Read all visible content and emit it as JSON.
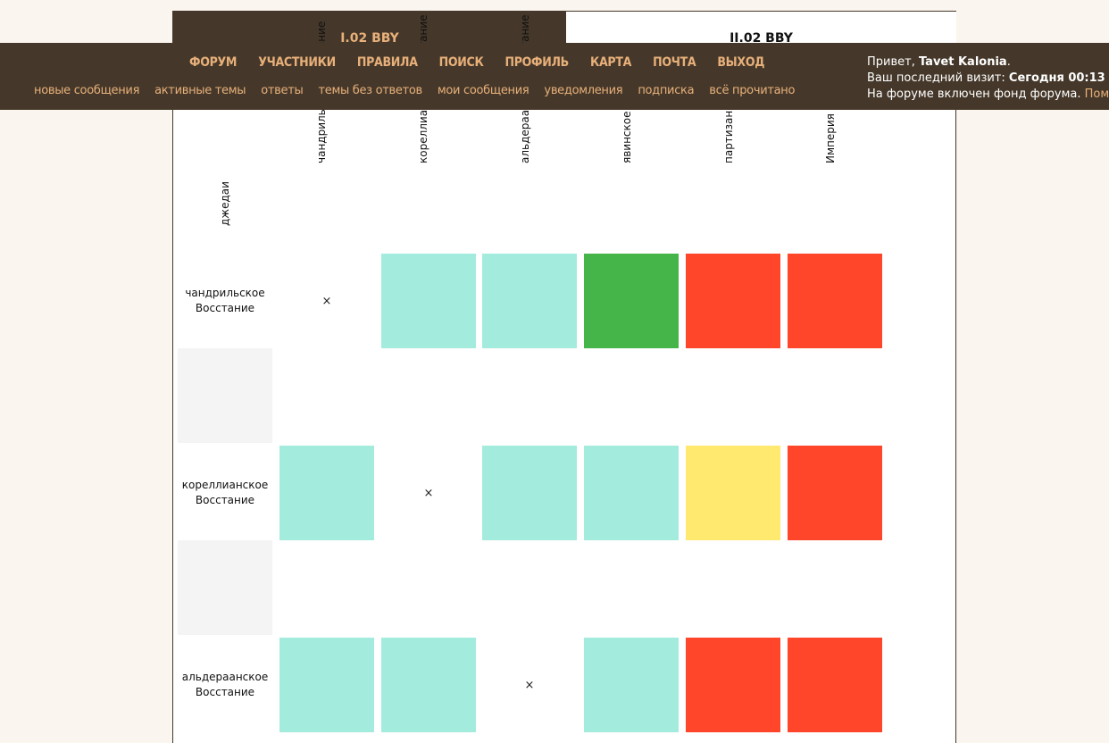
{
  "tabs": [
    {
      "label": "I.02 BBY",
      "active": true
    },
    {
      "label": "II.02 BBY",
      "active": false
    }
  ],
  "nav": {
    "main": [
      "ФОРУМ",
      "УЧАСТНИКИ",
      "ПРАВИЛА",
      "ПОИСК",
      "ПРОФИЛЬ",
      "КАРТА",
      "ПОЧТА",
      "ВЫХОД"
    ],
    "sub": [
      "новые сообщения",
      "активные темы",
      "ответы",
      "темы без ответов",
      "мои сообщения",
      "уведомления",
      "подписка",
      "всё прочитано"
    ]
  },
  "welcome": {
    "greeting": "Привет, ",
    "user": "Tavet Kalonia",
    "dot": ".",
    "last_visit_label": "Ваш последний визит: ",
    "last_visit": "Сегодня 00:13",
    "fund_text": "На форуме включен фонд форума. ",
    "fund_link": "Пом"
  },
  "matrix": {
    "corner_label": "джедаи",
    "columns": [
      "чандрильское Восстание",
      "кореллианское Восстание",
      "альдераанское Восстание",
      "явинское Восстание",
      "партизаны",
      "Империя"
    ],
    "rows": [
      {
        "label": "чандрильское Восстание",
        "cells": [
          "x",
          "ally",
          "ally",
          "friend",
          "enemy",
          "enemy"
        ]
      },
      {
        "label": "кореллианское Восстание",
        "cells": [
          "ally",
          "x",
          "ally",
          "ally",
          "neutral",
          "enemy"
        ]
      },
      {
        "label": "альдераанское Восстание",
        "cells": [
          "ally",
          "ally",
          "x",
          "ally",
          "enemy",
          "enemy"
        ]
      }
    ],
    "self_mark": "×",
    "colors": {
      "ally": "#a3ebdc",
      "friend": "#46b549",
      "enemy": "#ff462a",
      "neutral": "#ffe96f",
      "spacer": "#f4f4f4"
    }
  }
}
